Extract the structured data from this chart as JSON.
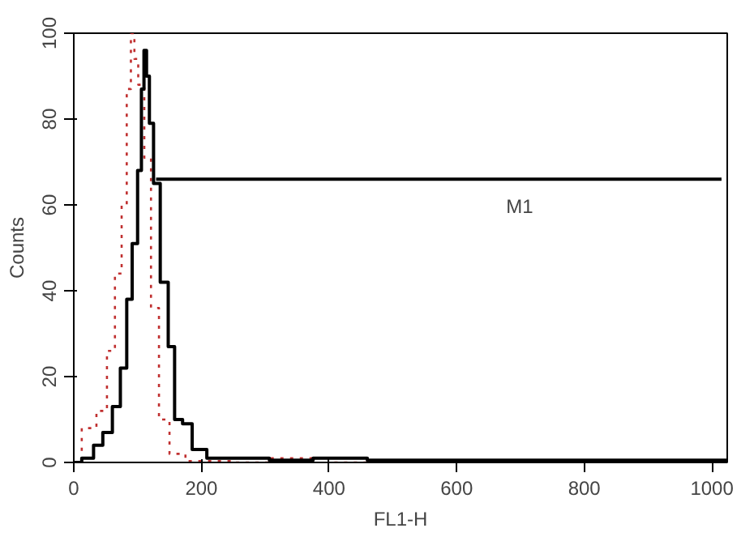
{
  "chart_data": {
    "type": "step",
    "xlabel": "FL1-H",
    "ylabel": "Counts",
    "xlim": [
      0,
      1024
    ],
    "ylim": [
      0,
      100
    ],
    "xticks": [
      0,
      200,
      400,
      600,
      800,
      1000
    ],
    "yticks": [
      0,
      20,
      40,
      60,
      80,
      100
    ],
    "grid": false,
    "series": [
      {
        "color": "#c03030",
        "line_style": "dotted",
        "x": [
          0,
          25,
          46,
          58,
          71,
          79,
          87,
          92,
          98,
          104,
          117,
          125,
          142,
          158,
          192,
          300,
          320,
          500,
          1024
        ],
        "values": [
          0,
          8,
          12,
          26,
          44,
          60,
          87,
          100,
          94,
          88,
          71,
          36,
          10,
          2,
          0.3,
          0,
          1,
          0,
          0
        ]
      },
      {
        "color": "#000000",
        "line_style": "solid",
        "x": [
          0,
          25,
          37,
          54,
          67,
          79,
          87,
          96,
          104,
          108,
          112,
          116,
          121,
          129,
          142,
          154,
          162,
          179,
          192,
          225,
          283,
          330,
          420,
          500,
          1024
        ],
        "values": [
          0,
          1,
          4,
          7,
          13,
          22,
          38,
          51,
          68,
          87,
          96,
          90,
          79,
          65,
          42,
          27,
          10,
          9,
          3,
          1,
          1,
          0.5,
          1,
          0.5,
          0.5
        ]
      },
      {
        "type": "line",
        "color": "#000000",
        "line_style": "solid",
        "x": [
          129,
          1015
        ],
        "values": [
          66,
          66
        ]
      }
    ],
    "annotations": [
      "M1"
    ]
  }
}
